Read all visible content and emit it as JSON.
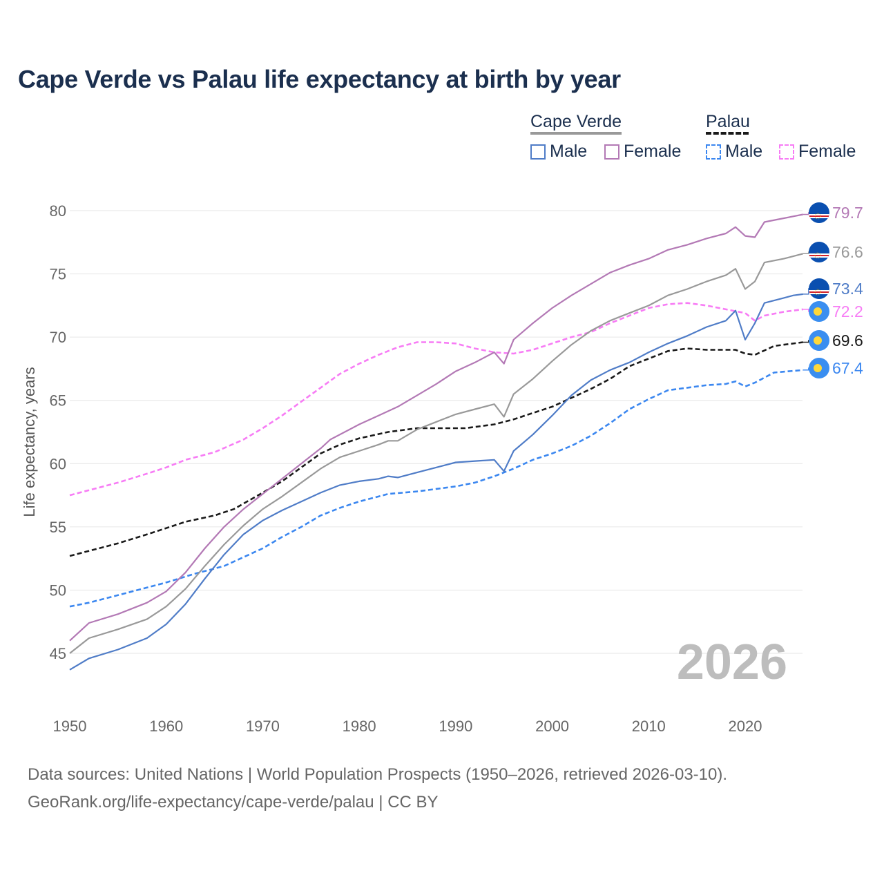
{
  "title": "Cape Verde vs Palau life expectancy at birth by year",
  "legend": {
    "groups": [
      {
        "label": "Cape Verde",
        "color": "#999999",
        "dashed": false
      },
      {
        "label": "Palau",
        "color": "#1a1a1a",
        "dashed": true
      }
    ],
    "items": [
      {
        "label": "Male",
        "color": "#4f7cc7",
        "dashed": false
      },
      {
        "label": "Female",
        "color": "#b379b5",
        "dashed": false
      },
      {
        "label": "Male",
        "color": "#3b87f0",
        "dashed": true
      },
      {
        "label": "Female",
        "color": "#f77cf5",
        "dashed": true
      }
    ]
  },
  "year_watermark": "2026",
  "sources": [
    "Data sources: United Nations | World Population Prospects (1950–2026, retrieved 2026-03-10).",
    "GeoRank.org/life-expectancy/cape-verde/palau | CC BY"
  ],
  "chart_data": {
    "type": "line",
    "title": "Cape Verde vs Palau life expectancy at birth by year",
    "xlabel": "",
    "ylabel": "Life expectancy, years",
    "xlim": [
      1950,
      2026
    ],
    "ylim": [
      43,
      81
    ],
    "xticks": [
      1950,
      1960,
      1970,
      1980,
      1990,
      2000,
      2010,
      2020
    ],
    "yticks": [
      45,
      50,
      55,
      60,
      65,
      70,
      75,
      80
    ],
    "grid": true,
    "legend_position": "top-right",
    "series": [
      {
        "name": "Palau Female",
        "country": "Palau",
        "color": "#f77cf5",
        "dashed": true,
        "end_label": "72.2",
        "flag": "palau",
        "x": [
          1950,
          1955,
          1958,
          1960,
          1962,
          1965,
          1968,
          1970,
          1972,
          1974,
          1976,
          1978,
          1980,
          1982,
          1984,
          1986,
          1988,
          1990,
          1992,
          1994,
          1996,
          1998,
          2000,
          2002,
          2004,
          2006,
          2008,
          2010,
          2012,
          2014,
          2016,
          2018,
          2020,
          2021,
          2022,
          2024,
          2026
        ],
        "y": [
          57.5,
          58.5,
          59.2,
          59.7,
          60.3,
          60.9,
          61.9,
          62.8,
          63.8,
          64.9,
          66.0,
          67.1,
          67.9,
          68.6,
          69.2,
          69.6,
          69.6,
          69.5,
          69.1,
          68.8,
          68.7,
          69.0,
          69.5,
          70.0,
          70.4,
          71.1,
          71.7,
          72.3,
          72.6,
          72.7,
          72.5,
          72.2,
          71.9,
          71.3,
          71.7,
          72.0,
          72.2
        ]
      },
      {
        "name": "Palau Male",
        "country": "Palau",
        "color": "#3b87f0",
        "dashed": true,
        "end_label": "67.4",
        "flag": "palau",
        "x": [
          1950,
          1952,
          1955,
          1958,
          1960,
          1963,
          1966,
          1968,
          1970,
          1972,
          1974,
          1976,
          1978,
          1980,
          1983,
          1986,
          1990,
          1992,
          1994,
          1996,
          1998,
          2000,
          2002,
          2004,
          2006,
          2008,
          2010,
          2012,
          2014,
          2016,
          2018,
          2019,
          2020,
          2021,
          2023,
          2026
        ],
        "y": [
          48.7,
          49.0,
          49.6,
          50.2,
          50.6,
          51.3,
          51.9,
          52.6,
          53.3,
          54.2,
          55.0,
          55.9,
          56.5,
          57.0,
          57.6,
          57.8,
          58.2,
          58.5,
          59.0,
          59.6,
          60.3,
          60.8,
          61.4,
          62.2,
          63.2,
          64.3,
          65.1,
          65.8,
          66.0,
          66.2,
          66.3,
          66.5,
          66.1,
          66.4,
          67.2,
          67.4
        ]
      },
      {
        "name": "Palau",
        "country": "Palau",
        "color": "#1a1a1a",
        "dashed": true,
        "end_label": "69.6",
        "flag": "palau",
        "x": [
          1950,
          1955,
          1958,
          1960,
          1962,
          1965,
          1967,
          1970,
          1972,
          1974,
          1976,
          1978,
          1980,
          1983,
          1986,
          1988,
          1991,
          1994,
          1996,
          1998,
          2000,
          2002,
          2004,
          2006,
          2008,
          2010,
          2012,
          2014,
          2016,
          2019,
          2020,
          2021,
          2023,
          2026
        ],
        "y": [
          52.7,
          53.7,
          54.4,
          54.9,
          55.4,
          55.9,
          56.4,
          57.7,
          58.6,
          59.7,
          60.8,
          61.5,
          62.0,
          62.5,
          62.8,
          62.8,
          62.8,
          63.1,
          63.5,
          64.0,
          64.5,
          65.2,
          65.9,
          66.7,
          67.7,
          68.3,
          68.9,
          69.1,
          69.0,
          69.0,
          68.7,
          68.6,
          69.3,
          69.6
        ]
      },
      {
        "name": "Cape Verde Male",
        "country": "Cape Verde",
        "color": "#4f7cc7",
        "dashed": false,
        "end_label": "73.4",
        "flag": "cape-verde",
        "x": [
          1950,
          1952,
          1955,
          1958,
          1960,
          1962,
          1964,
          1966,
          1968,
          1970,
          1972,
          1974,
          1976,
          1978,
          1980,
          1982,
          1983,
          1984,
          1986,
          1988,
          1990,
          1992,
          1994,
          1995,
          1996,
          1998,
          2000,
          2002,
          2004,
          2006,
          2008,
          2010,
          2012,
          2014,
          2016,
          2018,
          2019,
          2020,
          2021,
          2022,
          2024,
          2025,
          2026
        ],
        "y": [
          43.7,
          44.6,
          45.3,
          46.2,
          47.3,
          48.9,
          50.9,
          52.8,
          54.4,
          55.5,
          56.3,
          57.0,
          57.7,
          58.3,
          58.6,
          58.8,
          59.0,
          58.9,
          59.3,
          59.7,
          60.1,
          60.2,
          60.3,
          59.4,
          61.0,
          62.3,
          63.8,
          65.4,
          66.6,
          67.4,
          68.0,
          68.8,
          69.5,
          70.1,
          70.8,
          71.3,
          72.1,
          69.8,
          71.1,
          72.7,
          73.1,
          73.3,
          73.4
        ]
      },
      {
        "name": "Cape Verde",
        "country": "Cape Verde",
        "color": "#999999",
        "dashed": false,
        "end_label": "76.6",
        "flag": "cape-verde",
        "x": [
          1950,
          1952,
          1955,
          1958,
          1960,
          1962,
          1964,
          1966,
          1968,
          1970,
          1972,
          1974,
          1976,
          1978,
          1980,
          1982,
          1983,
          1984,
          1986,
          1988,
          1990,
          1992,
          1994,
          1995,
          1996,
          1998,
          2000,
          2002,
          2004,
          2006,
          2008,
          2010,
          2012,
          2014,
          2016,
          2018,
          2019,
          2020,
          2021,
          2022,
          2024,
          2026
        ],
        "y": [
          45.0,
          46.2,
          46.9,
          47.7,
          48.7,
          50.1,
          51.9,
          53.6,
          55.1,
          56.4,
          57.4,
          58.5,
          59.6,
          60.5,
          61.0,
          61.5,
          61.8,
          61.8,
          62.7,
          63.3,
          63.9,
          64.3,
          64.7,
          63.7,
          65.5,
          66.7,
          68.1,
          69.4,
          70.5,
          71.3,
          71.9,
          72.5,
          73.3,
          73.8,
          74.4,
          74.9,
          75.4,
          73.8,
          74.4,
          75.9,
          76.2,
          76.6
        ]
      },
      {
        "name": "Cape Verde Female",
        "country": "Cape Verde",
        "color": "#b379b5",
        "dashed": false,
        "end_label": "79.7",
        "flag": "cape-verde",
        "x": [
          1950,
          1952,
          1955,
          1958,
          1960,
          1962,
          1964,
          1966,
          1968,
          1970,
          1972,
          1974,
          1976,
          1977,
          1980,
          1982,
          1984,
          1986,
          1988,
          1990,
          1992,
          1994,
          1995,
          1996,
          1998,
          2000,
          2002,
          2004,
          2006,
          2008,
          2010,
          2012,
          2014,
          2016,
          2018,
          2019,
          2020,
          2021,
          2022,
          2024,
          2026
        ],
        "y": [
          46.0,
          47.4,
          48.1,
          49.0,
          49.9,
          51.4,
          53.3,
          55.0,
          56.4,
          57.6,
          58.8,
          60.0,
          61.2,
          61.9,
          63.1,
          63.8,
          64.5,
          65.4,
          66.3,
          67.3,
          68.0,
          68.8,
          67.9,
          69.8,
          71.1,
          72.3,
          73.3,
          74.2,
          75.1,
          75.7,
          76.2,
          76.9,
          77.3,
          77.8,
          78.2,
          78.7,
          78.0,
          77.9,
          79.1,
          79.4,
          79.7
        ]
      }
    ]
  }
}
